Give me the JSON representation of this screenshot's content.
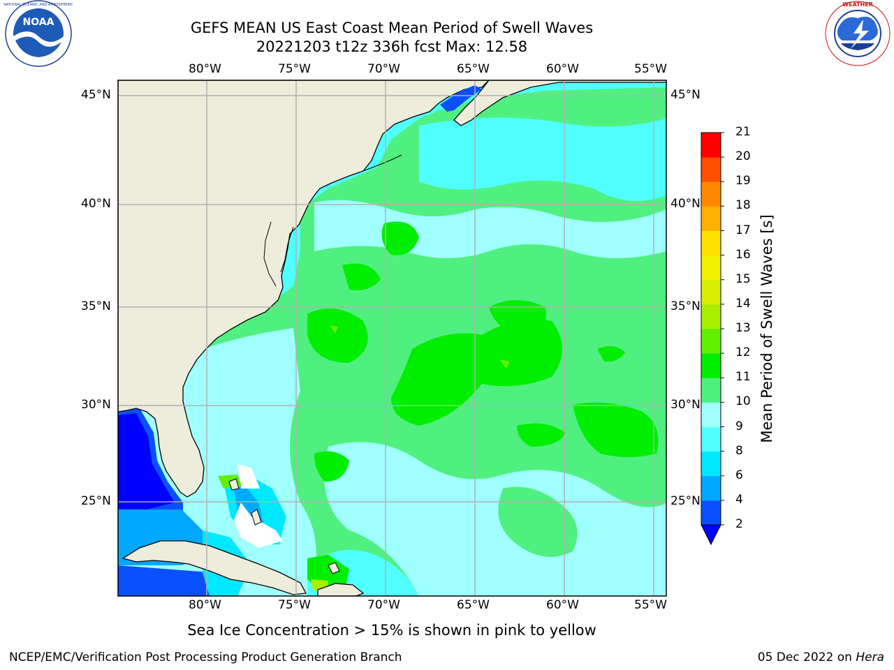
{
  "header": {
    "title_line1": "GEFS MEAN US East Coast Mean Period of Swell Waves",
    "title_line2": "20221203 t12z 336h fcst   Max: 12.58"
  },
  "logos": {
    "left": {
      "name": "NOAA",
      "text": "NOAA",
      "ring_text": "NATIONAL OCEANIC AND ATMOSPHERIC ADMINISTRATION · U.S. DEPARTMENT OF COMMERCE"
    },
    "right": {
      "name": "National Weather Service",
      "ring_text": "NATIONAL WEATHER SERVICE"
    }
  },
  "map": {
    "lon_labels": [
      "80°W",
      "75°W",
      "70°W",
      "65°W",
      "60°W",
      "55°W"
    ],
    "lat_labels": [
      "45°N",
      "40°N",
      "35°N",
      "30°N",
      "25°N"
    ],
    "colors": {
      "land": "#eeeddc",
      "gridline": "#b0b0b0",
      "coast": "#000000"
    }
  },
  "colorbar": {
    "title": "Mean Period of Swell Waves [s]",
    "levels": [
      "2",
      "4",
      "6",
      "8",
      "9",
      "10",
      "11",
      "12",
      "13",
      "14",
      "15",
      "16",
      "17",
      "18",
      "19",
      "20",
      "21"
    ],
    "colors": [
      "#0a50ff",
      "#00a8ff",
      "#00e8ff",
      "#50ffff",
      "#a0ffff",
      "#50f080",
      "#00ee00",
      "#60f000",
      "#a8f000",
      "#d8f000",
      "#f0f000",
      "#ffe000",
      "#ffb000",
      "#ff8800",
      "#ff5000",
      "#ff0000"
    ],
    "under_color": "#0000ff"
  },
  "caption": "Sea Ice Concentration > 15% is shown in pink to yellow",
  "footer": {
    "left": "NCEP/EMC/Verification Post Processing Product Generation Branch",
    "right_prefix": "05 Dec 2022 on ",
    "right_host": "Hera"
  }
}
